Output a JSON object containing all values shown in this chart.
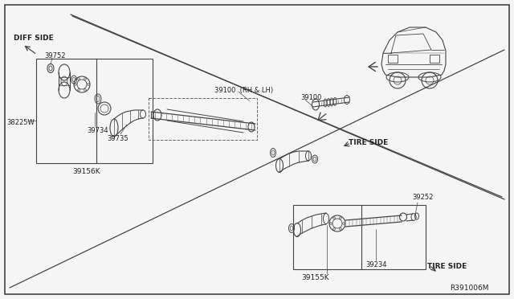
{
  "bg_color": "#f5f5f5",
  "border_color": "#444444",
  "line_color": "#444444",
  "text_color": "#222222",
  "ref_code": "R391006M",
  "labels": {
    "diff_side": "DIFF SIDE",
    "tire_side_top": "TIRE SIDE",
    "tire_side_bottom": "TIRE SIDE",
    "part_39752": "39752",
    "part_38225w": "38225W",
    "part_39734": "39734",
    "part_39735": "39735",
    "part_39156k": "39156K",
    "part_39100_label": "39100  (RH & LH)",
    "part_39100": "39100",
    "part_39252": "39252",
    "part_39234": "39234",
    "part_39155k": "39155K"
  }
}
